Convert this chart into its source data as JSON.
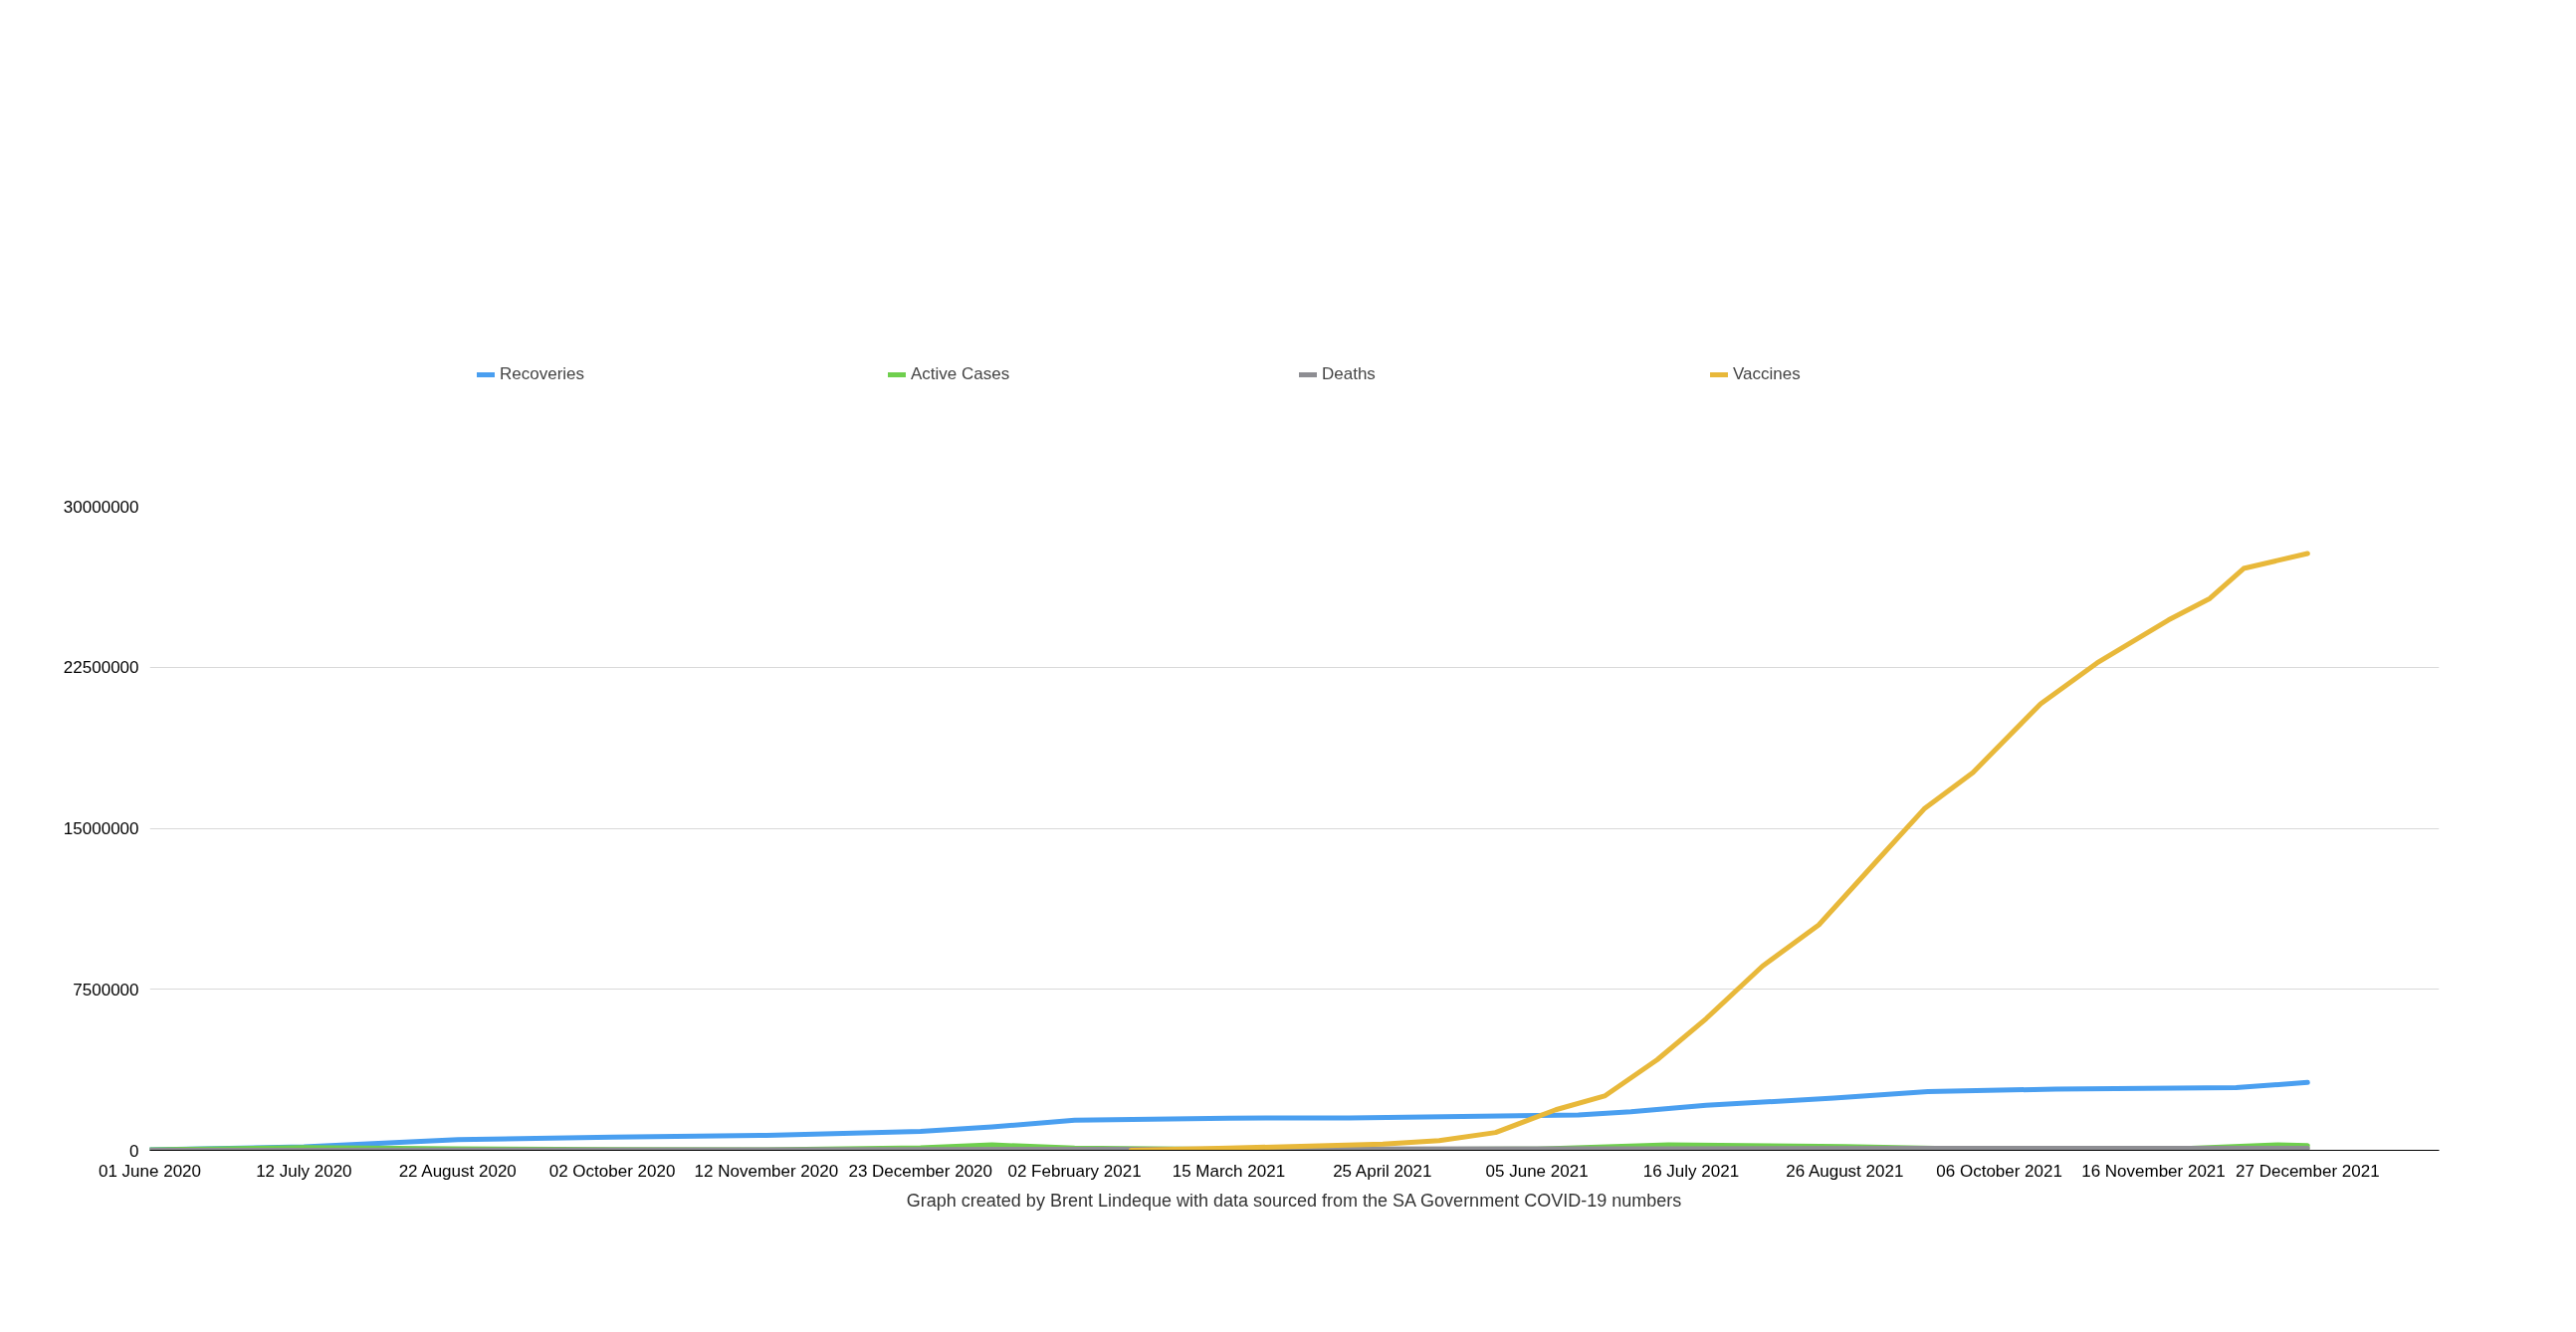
{
  "chart_data": {
    "type": "line",
    "legend": "top",
    "grid": "y",
    "line_style": "solid",
    "marker": "none",
    "annotations": [
      "Graph created by Brent Lindeque with data sourced from the SA Government COVID-19 numbers"
    ],
    "xlim": [
      "2020-06-01",
      "2022-01-31"
    ],
    "xticks": [
      {
        "value": "2020-06-01",
        "label": "01 June 2020"
      },
      {
        "value": "2020-07-12",
        "label": "12 July 2020"
      },
      {
        "value": "2020-08-22",
        "label": "22 August 2020"
      },
      {
        "value": "2020-10-02",
        "label": "02 October 2020"
      },
      {
        "value": "2020-11-12",
        "label": "12 November 2020"
      },
      {
        "value": "2020-12-23",
        "label": "23 December 2020"
      },
      {
        "value": "2021-02-02",
        "label": "02 February 2021"
      },
      {
        "value": "2021-03-15",
        "label": "15 March 2021"
      },
      {
        "value": "2021-04-25",
        "label": "25 April 2021"
      },
      {
        "value": "2021-06-05",
        "label": "05 June 2021"
      },
      {
        "value": "2021-07-16",
        "label": "16 July 2021"
      },
      {
        "value": "2021-08-26",
        "label": "26 August 2021"
      },
      {
        "value": "2021-10-06",
        "label": "06 October 2021"
      },
      {
        "value": "2021-11-16",
        "label": "16 November 2021"
      },
      {
        "value": "2021-12-27",
        "label": "27 December 2021"
      }
    ],
    "ylim": [
      0,
      30000000
    ],
    "yticks": [
      0,
      7500000,
      15000000,
      22500000,
      30000000
    ],
    "series": [
      {
        "name": "Recoveries",
        "color": "#4a9ff0",
        "x": [
          "2020-06-01",
          "2020-07-12",
          "2020-08-22",
          "2020-10-02",
          "2020-11-12",
          "2020-12-23",
          "2021-01-11",
          "2021-02-02",
          "2021-03-15",
          "2021-04-16",
          "2021-06-16",
          "2021-06-30",
          "2021-07-20",
          "2021-08-23",
          "2021-09-17",
          "2021-10-21",
          "2021-12-08",
          "2021-12-27"
        ],
        "values": [
          20000,
          160000,
          500000,
          620000,
          700000,
          880000,
          1090000,
          1400000,
          1500000,
          1510000,
          1650000,
          1800000,
          2100000,
          2430000,
          2740000,
          2850000,
          2920000,
          3160000
        ]
      },
      {
        "name": "Active Cases",
        "color": "#6fcf4e",
        "x": [
          "2020-06-01",
          "2020-07-12",
          "2020-08-22",
          "2020-10-02",
          "2020-11-12",
          "2020-12-23",
          "2021-01-11",
          "2021-02-02",
          "2021-03-15",
          "2021-04-25",
          "2021-06-05",
          "2021-07-10",
          "2021-08-26",
          "2021-10-06",
          "2021-11-16",
          "2021-12-19",
          "2021-12-27"
        ],
        "values": [
          20000,
          130000,
          70000,
          30000,
          20000,
          120000,
          250000,
          100000,
          30000,
          40000,
          60000,
          250000,
          170000,
          30000,
          20000,
          250000,
          220000
        ]
      },
      {
        "name": "Deaths",
        "color": "#8e8e93",
        "x": [
          "2020-06-01",
          "2020-08-22",
          "2020-12-23",
          "2021-02-02",
          "2021-07-10",
          "2021-09-17",
          "2021-12-27"
        ],
        "values": [
          0,
          10000,
          30000,
          50000,
          70000,
          90000,
          90000
        ]
      },
      {
        "name": "Vaccines",
        "color": "#e8b83a",
        "x": [
          "2021-02-17",
          "2021-03-15",
          "2021-04-25",
          "2021-05-10",
          "2021-05-25",
          "2021-06-10",
          "2021-06-23",
          "2021-07-07",
          "2021-07-20",
          "2021-08-04",
          "2021-08-19",
          "2021-09-03",
          "2021-09-16",
          "2021-09-29",
          "2021-10-17",
          "2021-11-01",
          "2021-11-20",
          "2021-12-01",
          "2021-12-10",
          "2021-12-27"
        ],
        "values": [
          0,
          100000,
          290000,
          450000,
          830000,
          1890000,
          2530000,
          4220000,
          6130000,
          8580000,
          10500000,
          13400000,
          15900000,
          17600000,
          20800000,
          22700000,
          24700000,
          25700000,
          27100000,
          27800000
        ]
      }
    ]
  }
}
